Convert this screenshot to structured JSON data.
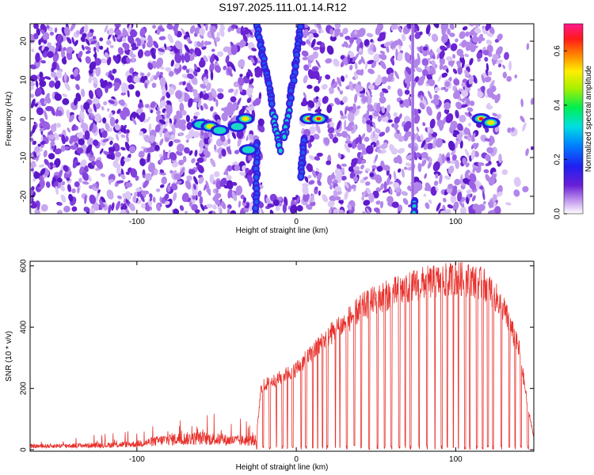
{
  "title": "S197.2025.111.01.14.R12",
  "colors": {
    "snr_line": "#e8322d",
    "background": "#ffffff",
    "axis": "#000000"
  },
  "chart_data": [
    {
      "type": "heatmap",
      "xlabel": "Height of straight line (km)",
      "ylabel": "Frequency (Hz)",
      "xlim": [
        -167,
        149
      ],
      "ylim": [
        -24.5,
        24.5
      ],
      "xticks": [
        -100,
        0,
        100
      ],
      "yticks": [
        -20,
        -10,
        0,
        10,
        20
      ],
      "xtick_labels": [
        "-100",
        "0",
        "100"
      ],
      "ytick_labels": [
        "-20",
        "-10",
        "0",
        "10",
        "20"
      ],
      "colorbar": {
        "label": "Normalized spectral amplitude",
        "range": [
          0.0,
          0.7
        ],
        "ticks": [
          0.0,
          0.2,
          0.4,
          0.6
        ],
        "tick_labels": [
          "0.0",
          "0.2",
          "0.4",
          "0.6"
        ],
        "colormap": "rainbow (purple-blue-cyan-green-yellow-red-magenta)"
      },
      "features": [
        {
          "desc": "peaks near 0 Hz",
          "x": [
            -55,
            -30,
            13,
            118
          ],
          "y": [
            -1,
            0,
            0,
            0
          ]
        },
        {
          "desc": "diverging V-shaped tracks",
          "x_range": [
            -25,
            5
          ],
          "y_range": [
            -8,
            24.5
          ]
        },
        {
          "desc": "vertical stripe",
          "x": 73
        }
      ]
    },
    {
      "type": "line",
      "xlabel": "Height of straight line (km)",
      "ylabel": "SNR (10 * v/v)",
      "xlim": [
        -167,
        149
      ],
      "ylim": [
        -5,
        615
      ],
      "xticks": [
        -100,
        0,
        100
      ],
      "yticks": [
        0,
        200,
        400,
        600
      ],
      "xtick_labels": [
        "-100",
        "0",
        "100"
      ],
      "ytick_labels": [
        "0",
        "200",
        "400",
        "600"
      ],
      "grid": false,
      "series": [
        {
          "color": "#e8322d",
          "envelope_x": [
            -167,
            -120,
            -100,
            -80,
            -60,
            -40,
            -25,
            -22,
            -10,
            0,
            10,
            20,
            30,
            40,
            50,
            60,
            70,
            80,
            90,
            100,
            110,
            120,
            130,
            140,
            145,
            149
          ],
          "envelope_y": [
            15,
            20,
            25,
            45,
            50,
            40,
            40,
            210,
            240,
            270,
            320,
            380,
            420,
            470,
            500,
            520,
            540,
            555,
            560,
            570,
            565,
            545,
            470,
            330,
            150,
            40
          ],
          "drops_to_zero": true
        }
      ]
    }
  ]
}
